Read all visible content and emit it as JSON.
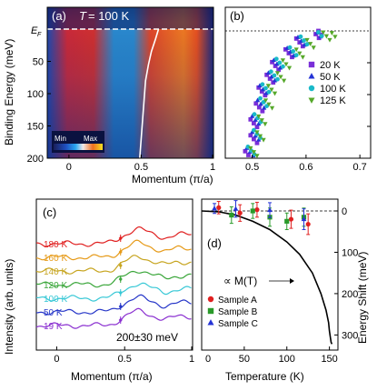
{
  "chart_data": [
    {
      "id": "a",
      "type": "heatmap",
      "panel_label": "(a)",
      "title_var": "T",
      "title_value": "= 100 K",
      "ylabel": "Binding Energy (meV)",
      "xlabel": "Momentum (π/a)",
      "y_ticks": [
        "E",
        "50",
        "100",
        "150",
        "200"
      ],
      "y_tick_sub": "F",
      "x_ticks": [
        "0",
        "0.5",
        "1"
      ],
      "xlim": [
        -0.15,
        1.0
      ],
      "ylim": [
        0,
        200
      ],
      "colorbar": {
        "min_label": "Min",
        "max_label": "Max"
      },
      "dispersion_trace": {
        "x": [
          0.49,
          0.5,
          0.51,
          0.52,
          0.53,
          0.55,
          0.57,
          0.6,
          0.62
        ],
        "y": [
          200,
          170,
          140,
          110,
          80,
          55,
          35,
          15,
          0
        ]
      }
    },
    {
      "id": "b",
      "type": "scatter",
      "panel_label": "(b)",
      "xlim": [
        0.45,
        0.72
      ],
      "ylim": [
        0,
        200
      ],
      "x_ticks": [
        "0.5",
        "0.6",
        "0.7"
      ],
      "y_ticks": [
        "50",
        "100",
        "150",
        "200"
      ],
      "series": [
        {
          "name": "20 K",
          "color": "#7a2fd8",
          "marker": "square",
          "x": [
            0.495,
            0.5,
            0.505,
            0.51,
            0.52,
            0.53,
            0.545,
            0.565,
            0.59,
            0.615,
            0.625
          ],
          "y": [
            195,
            170,
            145,
            120,
            95,
            75,
            55,
            35,
            18,
            5,
            0
          ]
        },
        {
          "name": "50 K",
          "color": "#2433d6",
          "marker": "triangle-up",
          "x": [
            0.498,
            0.503,
            0.508,
            0.513,
            0.522,
            0.533,
            0.548,
            0.568,
            0.593,
            0.618
          ],
          "y": [
            190,
            165,
            140,
            115,
            92,
            72,
            52,
            33,
            16,
            3
          ]
        },
        {
          "name": "100 K",
          "color": "#19b9c9",
          "marker": "circle",
          "x": [
            0.5,
            0.506,
            0.512,
            0.518,
            0.527,
            0.538,
            0.553,
            0.573,
            0.598,
            0.62
          ],
          "y": [
            188,
            162,
            137,
            112,
            90,
            70,
            50,
            32,
            15,
            2
          ]
        },
        {
          "name": "125 K",
          "color": "#56a82a",
          "marker": "triangle-down",
          "x": [
            0.505,
            0.512,
            0.52,
            0.528,
            0.538,
            0.55,
            0.565,
            0.585,
            0.61,
            0.635,
            0.65
          ],
          "y": [
            190,
            165,
            140,
            115,
            92,
            72,
            52,
            35,
            20,
            8,
            3
          ]
        }
      ]
    },
    {
      "id": "c",
      "type": "line",
      "panel_label": "(c)",
      "ylabel": "Intensity (arb. units)",
      "xlabel": "Momentum (π/a)",
      "x_ticks": [
        "0",
        "0.5",
        "1"
      ],
      "annotation": "200±30 meV",
      "series": [
        {
          "name": "180 K",
          "color": "#e02020"
        },
        {
          "name": "160 K",
          "color": "#e69a18"
        },
        {
          "name": "140 K",
          "color": "#c7a520"
        },
        {
          "name": "120 K",
          "color": "#3aa63a"
        },
        {
          "name": "100 K",
          "color": "#38c8d6"
        },
        {
          "name": "50 K",
          "color": "#2636c8"
        },
        {
          "name": "19 K",
          "color": "#8a2fd0"
        }
      ]
    },
    {
      "id": "d",
      "type": "scatter",
      "panel_label": "(d)",
      "xlabel": "Temperature (K)",
      "ylabel": "Energy Shift (meV)",
      "x_ticks": [
        "0",
        "50",
        "100",
        "150"
      ],
      "y_ticks": [
        "0",
        "100",
        "200",
        "300"
      ],
      "xlim": [
        0,
        160
      ],
      "ylim": [
        -30,
        330
      ],
      "curve_label": "∝ M(T)",
      "series": [
        {
          "name": "Sample A",
          "color": "#e02020",
          "marker": "circle",
          "x": [
            20,
            45,
            65,
            105,
            125
          ],
          "y": [
            -8,
            5,
            -3,
            20,
            32
          ],
          "err": [
            15,
            20,
            18,
            22,
            25
          ]
        },
        {
          "name": "Sample B",
          "color": "#2a9a2a",
          "marker": "square",
          "x": [
            35,
            60,
            80,
            100,
            120
          ],
          "y": [
            10,
            0,
            15,
            25,
            15
          ],
          "err": [
            20,
            18,
            22,
            20,
            22
          ]
        },
        {
          "name": "Sample C",
          "color": "#2433d6",
          "marker": "triangle-up",
          "x": [
            15,
            40,
            80,
            120
          ],
          "y": [
            -6,
            -5,
            -2,
            20
          ],
          "err": [
            12,
            20,
            18,
            25
          ]
        }
      ],
      "magnetization_curve": {
        "x": [
          0,
          20,
          40,
          60,
          80,
          100,
          115,
          130,
          140,
          146,
          149,
          150,
          151,
          152,
          153
        ],
        "y": [
          0,
          2,
          10,
          25,
          45,
          75,
          105,
          150,
          200,
          240,
          270,
          290,
          305,
          318,
          322
        ]
      }
    }
  ]
}
